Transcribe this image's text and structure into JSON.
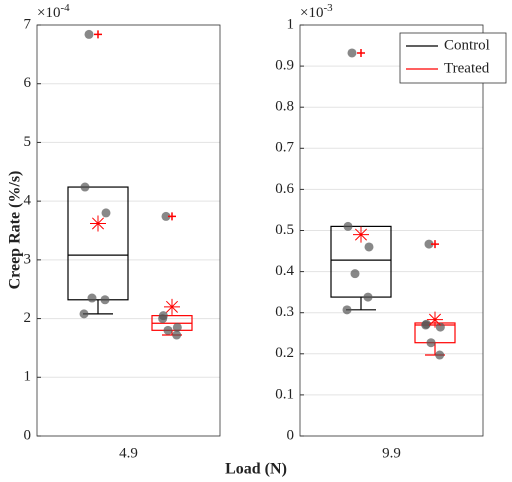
{
  "ylabel": "Creep Rate (%/s)",
  "xlabel": "Load (N)",
  "chart_data": [
    {
      "type": "box",
      "category": "4.9",
      "ylim": [
        0,
        7
      ],
      "yticks": [
        0,
        1,
        2,
        3,
        4,
        5,
        6,
        7
      ],
      "exponent_base": "×10",
      "exponent_power": "-4",
      "grid": true,
      "outlier_color": "#ff0000",
      "mean_color": "#ff0000",
      "point_color": "#555555",
      "series": [
        {
          "color": "#000000",
          "q1": 2.32,
          "median": 3.08,
          "q3": 4.24,
          "whisker_low": 2.08,
          "whisker_high": 4.24,
          "mean": 3.62,
          "outliers": [
            6.84
          ],
          "points": [
            6.84,
            4.24,
            3.8,
            2.35,
            2.32,
            2.08
          ]
        },
        {
          "color": "#ff0000",
          "q1": 1.8,
          "median": 1.92,
          "q3": 2.05,
          "whisker_low": 1.72,
          "whisker_high": 2.05,
          "mean": 2.2,
          "outliers": [
            3.74
          ],
          "points": [
            3.74,
            2.05,
            1.85,
            1.8,
            1.72,
            2.0
          ]
        }
      ]
    },
    {
      "type": "box",
      "category": "9.9",
      "ylim": [
        0,
        1
      ],
      "yticks": [
        0,
        0.1,
        0.2,
        0.3,
        0.4,
        0.5,
        0.6,
        0.7,
        0.8,
        0.9,
        1
      ],
      "exponent_base": "×10",
      "exponent_power": "-3",
      "grid": true,
      "legend": "northeast",
      "outlier_color": "#ff0000",
      "mean_color": "#ff0000",
      "point_color": "#555555",
      "series": [
        {
          "name": "Control",
          "color": "#000000",
          "q1": 0.338,
          "median": 0.428,
          "q3": 0.51,
          "whisker_low": 0.307,
          "whisker_high": 0.51,
          "mean": 0.49,
          "outliers": [
            0.932
          ],
          "points": [
            0.932,
            0.51,
            0.46,
            0.395,
            0.338,
            0.307
          ]
        },
        {
          "name": "Treated",
          "color": "#ff0000",
          "q1": 0.227,
          "median": 0.27,
          "q3": 0.275,
          "whisker_low": 0.197,
          "whisker_high": 0.275,
          "mean": 0.283,
          "outliers": [
            0.467
          ],
          "points": [
            0.467,
            0.272,
            0.265,
            0.227,
            0.197,
            0.27
          ]
        }
      ]
    }
  ]
}
